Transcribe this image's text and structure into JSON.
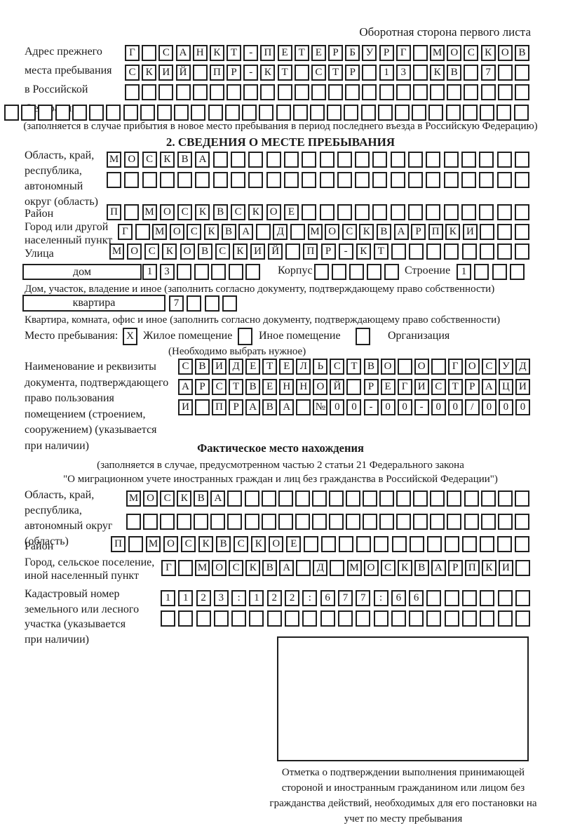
{
  "header": {
    "note": "Оборотная сторона первого листа"
  },
  "prev_address": {
    "label": "Адрес прежнего\nместа пребывания\nв Российской\nФедерации",
    "row1": {
      "text": "Г САНКТ-ПЕТЕРБУРГ МОСКОВ",
      "count": 24
    },
    "row2": {
      "text": "СКИЙ ПР-КТ СТР 13 КВ 7",
      "count": 24
    },
    "row3": {
      "text": "",
      "count": 24
    },
    "row4": {
      "text": "",
      "count": 31
    },
    "note": "(заполняется в случае прибытия в новое место пребывания в период последнего въезда в Российскую Федерацию)"
  },
  "section2": {
    "title": "2. СВЕДЕНИЯ О МЕСТЕ ПРЕБЫВАНИЯ",
    "oblast": {
      "label": "Область, край,\nреспублика,\nавтономный\nокруг (область)",
      "row1": {
        "text": "МОСКВА",
        "count": 24
      },
      "row2": {
        "text": "",
        "count": 24
      }
    },
    "rayon": {
      "label": "Район",
      "row": {
        "text": "П МОСКВСКОЕ",
        "count": 24
      }
    },
    "gorod": {
      "label": "Город или другой\nнаселенный пункт",
      "row": {
        "text": "Г МОСКВА Д МОСКВАРПКИ",
        "count": 24
      }
    },
    "ulitsa": {
      "label": "Улица",
      "row": {
        "text": "МОСКОВСКИЙ ПР-КТ",
        "count": 24
      }
    },
    "dom": {
      "box_label": "дом",
      "cells": {
        "text": "13",
        "count": 7
      },
      "korpus_label": "Корпус",
      "korpus_cells": {
        "text": "",
        "count": 5
      },
      "stroenie_label": "Строение",
      "stroenie_cells": {
        "text": "1",
        "count": 4
      },
      "note": "Дом, участок, владение и иное (заполнить согласно документу, подтверждающему право собственности)"
    },
    "kvartira": {
      "box_label": "квартира",
      "cells": {
        "text": "7",
        "count": 4
      },
      "note": "Квартира, комната, офис и иное (заполнить согласно документу, подтверждающему право собственности)"
    },
    "mesto": {
      "label": "Место пребывания:",
      "checked_mark": "X",
      "options": [
        "Жилое помещение",
        "Иное помещение",
        "Организация"
      ],
      "note": "(Необходимо выбрать нужное)"
    },
    "doc": {
      "label": "Наименование и реквизиты\nдокумента, подтверждающего\nправо пользования\nпомещением (строением,\nсооружением) (указывается\nпри наличии)",
      "row1": {
        "text": "СВИДЕТЕЛЬСТВО О ГОСУД",
        "count": 21
      },
      "row2": {
        "text": "АРСТВЕННОЙ РЕГИСТРАЦИ",
        "count": 21
      },
      "row3": {
        "text": "И ПРАВА №00-00-00/000",
        "count": 21
      }
    }
  },
  "fact": {
    "title": "Фактическое место нахождения",
    "sub1": "(заполняется в случае, предусмотренном частью 2 статьи 21 Федерального закона",
    "sub2": "\"О миграционном учете иностранных граждан и лиц без гражданства в Российской Федерации\")",
    "oblast": {
      "label": "Область, край,\nреспублика,\nавтономный округ\n(область)",
      "row1": {
        "text": "МОСКВА",
        "count": 24
      },
      "row2": {
        "text": "",
        "count": 24
      }
    },
    "rayon": {
      "label": "Район",
      "row": {
        "text": "П МОСКВСКОЕ",
        "count": 24
      }
    },
    "gorod": {
      "label": "Город, сельское поселение,\nиной населенный пункт",
      "row": {
        "text": "Г МОСКВА Д МОСКВАРПКИ",
        "count": 22
      }
    },
    "kadastr": {
      "label": "Кадастровый номер\nземельного или лесного\nучастка (указывается\nпри наличии)",
      "row1": {
        "text": "1123:122:677:66",
        "count": 21
      },
      "row2": {
        "text": "",
        "count": 21
      }
    },
    "stamp_note": "Отметка о подтверждении выполнения принимающей стороной и иностранным гражданином или лицом без гражданства действий, необходимых для его постановки на учет по месту пребывания"
  }
}
